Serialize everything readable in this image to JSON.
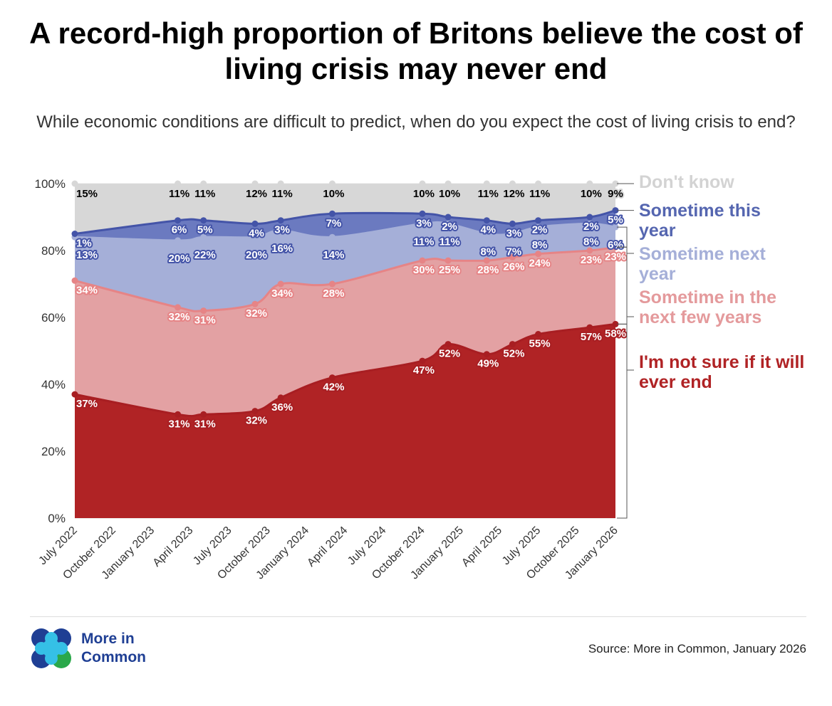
{
  "title": "A record-high proportion of Britons believe the cost of living crisis may never end",
  "subtitle": "While economic conditions are difficult to predict, when do you expect the cost of living crisis to end?",
  "source": "Source: More in Common, January 2026",
  "logo": {
    "line1": "More in",
    "line2": "Common"
  },
  "chart_data": {
    "type": "area",
    "stacked": true,
    "ylim": [
      0,
      100
    ],
    "yticks": [
      "0%",
      "20%",
      "40%",
      "60%",
      "80%",
      "100%"
    ],
    "xticks": [
      "July 2022",
      "October 2022",
      "January 2023",
      "April 2023",
      "July 2023",
      "October 2023",
      "January 2024",
      "April 2024",
      "July 2024",
      "October 2024",
      "January 2025",
      "April 2025",
      "July 2025",
      "October 2025",
      "January 2026"
    ],
    "x_months_since_jul_2022": [
      0,
      8,
      10,
      14,
      16,
      20,
      27,
      29,
      32,
      34,
      36,
      40,
      42
    ],
    "series": [
      {
        "name": "I'm not sure if it will ever end",
        "color": "#b02325",
        "line": "#a81e22",
        "label_color": "#ffffff",
        "values": [
          37,
          31,
          31,
          32,
          36,
          42,
          47,
          52,
          49,
          52,
          55,
          57,
          58
        ]
      },
      {
        "name": "Sometime in the next few years",
        "color": "#e3a1a3",
        "line": "#e68486",
        "label_color": "#ffffff",
        "values": [
          34,
          32,
          31,
          32,
          34,
          28,
          30,
          25,
          28,
          26,
          24,
          23,
          23
        ]
      },
      {
        "name": "Sometime next year",
        "color": "#a5afd8",
        "line": "#a5afd8",
        "label_color": "#ffffff",
        "values": [
          13,
          20,
          22,
          20,
          16,
          14,
          11,
          11,
          8,
          7,
          8,
          8,
          6
        ]
      },
      {
        "name": "Sometime this year",
        "color": "#6b7ac0",
        "line": "#4454a8",
        "label_color": "#ffffff",
        "values": [
          1,
          6,
          5,
          4,
          3,
          7,
          3,
          2,
          4,
          3,
          2,
          2,
          5
        ]
      },
      {
        "name": "Don't know",
        "color": "#d7d7d7",
        "line": "#d7d7d7",
        "label_color": "#000000",
        "values": [
          15,
          11,
          11,
          12,
          11,
          10,
          10,
          10,
          11,
          12,
          11,
          10,
          9
        ]
      }
    ],
    "legend": [
      "Don't know",
      "Sometime this year",
      "Sometime next year",
      "Sometime in the next few years",
      "I'm not sure if it will ever end"
    ],
    "legend_colors": [
      "#d3d3d3",
      "#5566b0",
      "#a5afd8",
      "#e49a9c",
      "#b02325"
    ]
  }
}
